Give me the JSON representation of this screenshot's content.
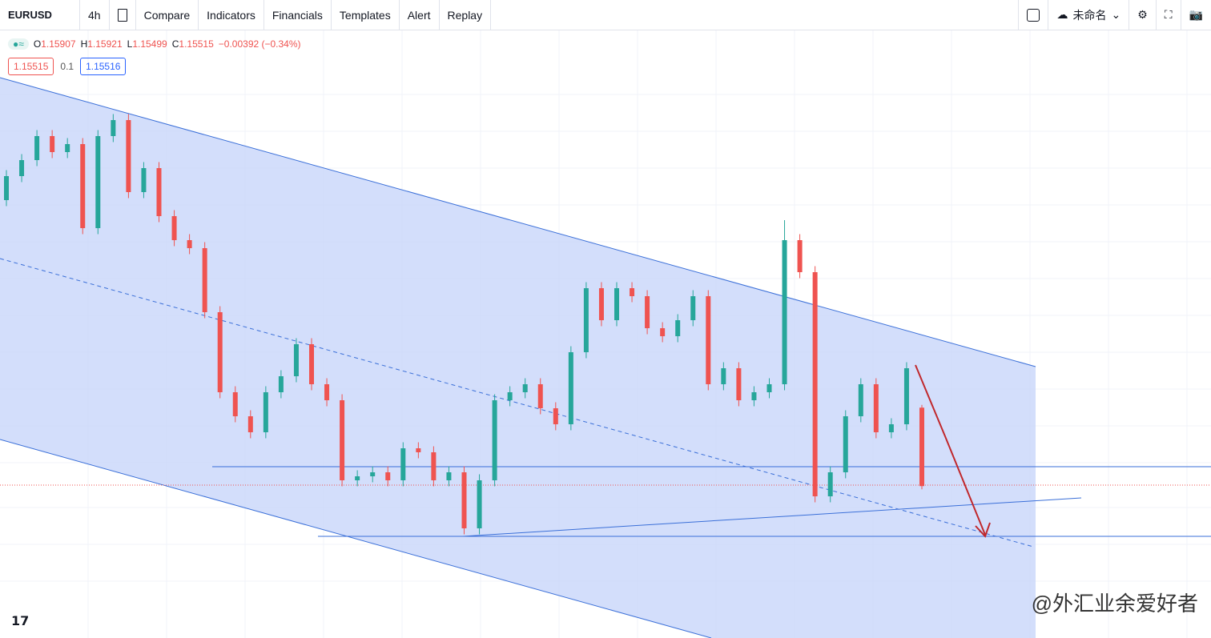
{
  "toolbar": {
    "symbol": "EURUSD",
    "interval": "4h",
    "buttons": [
      "Compare",
      "Indicators",
      "Financials",
      "Templates",
      "Alert",
      "Replay"
    ],
    "layout_name": "未命名"
  },
  "legend": {
    "ohlc": [
      {
        "label": "O",
        "value": "1.15907"
      },
      {
        "label": "H",
        "value": "1.15921"
      },
      {
        "label": "L",
        "value": "1.15499"
      },
      {
        "label": "C",
        "value": "1.15515"
      }
    ],
    "change": "−0.00392 (−0.34%)",
    "sell": "1.15515",
    "spread": "0.1",
    "buy": "1.15516"
  },
  "watermark": "@外汇业余爱好者",
  "chart_data": {
    "type": "candlestick",
    "up_color": "#26a69a",
    "down_color": "#ef5350",
    "ylim": [
      1.14756,
      1.17784
    ],
    "open": [
      1.16944,
      1.17064,
      1.17144,
      1.17264,
      1.17184,
      1.17224,
      1.16804,
      1.17264,
      1.17344,
      1.16984,
      1.17104,
      1.16864,
      1.16744,
      1.16704,
      1.16384,
      1.15984,
      1.15864,
      1.15784,
      1.15984,
      1.16064,
      1.16224,
      1.16024,
      1.15944,
      1.15544,
      1.15564,
      1.15584,
      1.15544,
      1.15704,
      1.15684,
      1.15544,
      1.15584,
      1.15304,
      1.15544,
      1.15944,
      1.15984,
      1.16024,
      1.15904,
      1.15824,
      1.16184,
      1.16504,
      1.16344,
      1.16504,
      1.16464,
      1.16304,
      1.16264,
      1.16344,
      1.16464,
      1.16024,
      1.16104,
      1.15944,
      1.15984,
      1.16024,
      1.16744,
      1.16584,
      1.15464,
      1.15584,
      1.15864,
      1.16024,
      1.15784,
      1.15824,
      1.15907
    ],
    "high": [
      1.17094,
      1.17174,
      1.17294,
      1.17294,
      1.17254,
      1.17254,
      1.17294,
      1.17374,
      1.17374,
      1.17134,
      1.17134,
      1.16894,
      1.16774,
      1.16734,
      1.16414,
      1.16014,
      1.15894,
      1.16014,
      1.16094,
      1.16254,
      1.16254,
      1.16054,
      1.15974,
      1.15594,
      1.15614,
      1.15614,
      1.15734,
      1.15734,
      1.15714,
      1.15614,
      1.15614,
      1.15574,
      1.15974,
      1.16014,
      1.16054,
      1.16054,
      1.15934,
      1.16214,
      1.16534,
      1.16534,
      1.16534,
      1.16534,
      1.16494,
      1.16334,
      1.16374,
      1.16494,
      1.16494,
      1.16134,
      1.16134,
      1.16014,
      1.16054,
      1.16844,
      1.16774,
      1.16614,
      1.15614,
      1.15894,
      1.16054,
      1.16054,
      1.15854,
      1.16134,
      1.15921
    ],
    "low": [
      1.16914,
      1.17034,
      1.17114,
      1.17154,
      1.17154,
      1.16774,
      1.16774,
      1.17234,
      1.16954,
      1.16954,
      1.16834,
      1.16714,
      1.16674,
      1.16354,
      1.15954,
      1.15834,
      1.15754,
      1.15754,
      1.15954,
      1.16034,
      1.15994,
      1.15914,
      1.15514,
      1.15514,
      1.15534,
      1.15514,
      1.15514,
      1.15654,
      1.15514,
      1.15514,
      1.15274,
      1.15274,
      1.15514,
      1.15914,
      1.15954,
      1.15874,
      1.15794,
      1.15794,
      1.16154,
      1.16314,
      1.16314,
      1.16434,
      1.16274,
      1.16234,
      1.16234,
      1.16314,
      1.15994,
      1.15994,
      1.15914,
      1.15914,
      1.15954,
      1.15994,
      1.16554,
      1.15434,
      1.15434,
      1.15554,
      1.15834,
      1.15754,
      1.15754,
      1.15794,
      1.15499
    ],
    "close": [
      1.17064,
      1.17144,
      1.17264,
      1.17184,
      1.17224,
      1.16804,
      1.17264,
      1.17344,
      1.16984,
      1.17104,
      1.16864,
      1.16744,
      1.16704,
      1.16384,
      1.15984,
      1.15864,
      1.15784,
      1.15984,
      1.16064,
      1.16224,
      1.16024,
      1.15944,
      1.15544,
      1.15564,
      1.15584,
      1.15544,
      1.15704,
      1.15684,
      1.15544,
      1.15584,
      1.15304,
      1.15544,
      1.15944,
      1.15984,
      1.16024,
      1.15904,
      1.15824,
      1.16184,
      1.16504,
      1.16344,
      1.16504,
      1.16464,
      1.16304,
      1.16264,
      1.16344,
      1.16464,
      1.16024,
      1.16104,
      1.15944,
      1.15984,
      1.16024,
      1.16744,
      1.16584,
      1.15464,
      1.15584,
      1.15864,
      1.16024,
      1.15784,
      1.15824,
      1.16104,
      1.15515
    ]
  }
}
